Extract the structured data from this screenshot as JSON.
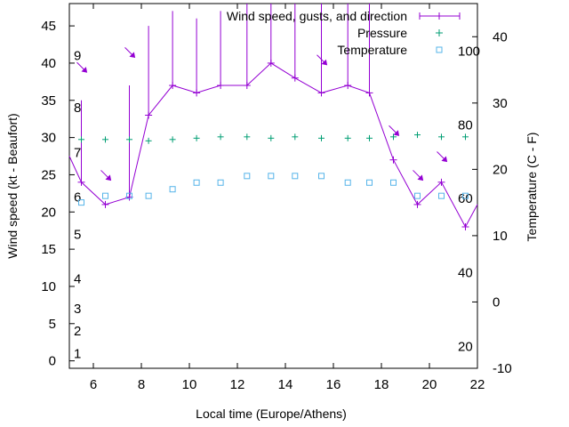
{
  "chart_data": {
    "type": "line",
    "title": "",
    "xlabel": "Local time (Europe/Athens)",
    "ylabel": "Wind speed (kt - Beaufort)",
    "y2label": "Temperature (C - F)",
    "xlim": [
      5,
      22
    ],
    "ylim": [
      -1,
      48
    ],
    "y2lim": [
      -10,
      45
    ],
    "x_ticks": [
      6,
      8,
      10,
      12,
      14,
      16,
      18,
      20,
      22
    ],
    "y_ticks": [
      0,
      5,
      10,
      15,
      20,
      25,
      30,
      35,
      40,
      45
    ],
    "y2_ticks": [
      -10,
      0,
      10,
      20,
      30,
      40
    ],
    "beaufort_labels": [
      {
        "text": "1",
        "y": 1
      },
      {
        "text": "2",
        "y": 4
      },
      {
        "text": "3",
        "y": 7
      },
      {
        "text": "4",
        "y": 11
      },
      {
        "text": "5",
        "y": 17
      },
      {
        "text": "6",
        "y": 22
      },
      {
        "text": "7",
        "y": 28
      },
      {
        "text": "8",
        "y": 34
      },
      {
        "text": "9",
        "y": 41
      }
    ],
    "fahrenheit_labels": [
      {
        "text": "20",
        "y2": -6.7
      },
      {
        "text": "40",
        "y2": 4.4
      },
      {
        "text": "60",
        "y2": 15.6
      },
      {
        "text": "80",
        "y2": 26.7
      },
      {
        "text": "100",
        "y2": 37.8
      }
    ],
    "legend_position": "top-right",
    "colors": {
      "wind": "#9400d3",
      "pressure": "#009e73",
      "temperature": "#56b4e9"
    },
    "series": [
      {
        "name": "Wind speed, gusts, and direction",
        "x": [
          5,
          5.5,
          6.5,
          7.5,
          8.3,
          9.3,
          10.3,
          11.3,
          12.4,
          13.4,
          14.4,
          15.5,
          16.6,
          17.5,
          18.5,
          19.5,
          20.5,
          21.5,
          22
        ],
        "y": [
          27.5,
          24,
          21,
          22,
          33,
          37,
          36,
          37,
          37,
          40,
          38,
          36,
          37,
          36,
          27,
          21,
          24,
          18,
          21
        ],
        "gusts": [
          null,
          35,
          null,
          37,
          45,
          47,
          46,
          47,
          48,
          48,
          48,
          48,
          48,
          48,
          null,
          null,
          null,
          null,
          null
        ],
        "direction_arrows": [
          {
            "x": 5.5,
            "y": 39.5,
            "dx": 1,
            "dy": -1
          },
          {
            "x": 6.5,
            "y": 25,
            "dx": 1,
            "dy": -1
          },
          {
            "x": 7.5,
            "y": 41.5,
            "dx": 1,
            "dy": -1
          },
          {
            "x": 15.5,
            "y": 40.5,
            "dx": 1,
            "dy": -1
          },
          {
            "x": 18.5,
            "y": 31,
            "dx": 1,
            "dy": -1
          },
          {
            "x": 19.5,
            "y": 25,
            "dx": 1,
            "dy": -1
          },
          {
            "x": 20.5,
            "y": 27.5,
            "dx": 1,
            "dy": -1
          }
        ]
      },
      {
        "name": "Pressure",
        "x": [
          5.5,
          6.5,
          7.5,
          8.3,
          9.3,
          10.3,
          11.3,
          12.4,
          13.4,
          14.4,
          15.5,
          16.6,
          17.5,
          18.5,
          19.5,
          20.5,
          21.5
        ],
        "y2": [
          24.5,
          24.5,
          24.5,
          24.3,
          24.5,
          24.7,
          24.9,
          24.9,
          24.7,
          24.9,
          24.7,
          24.7,
          24.7,
          24.9,
          25.2,
          24.9,
          24.9
        ]
      },
      {
        "name": "Temperature",
        "x": [
          5.5,
          6.5,
          7.5,
          8.3,
          9.3,
          10.3,
          11.3,
          12.4,
          13.4,
          14.4,
          15.5,
          16.6,
          17.5,
          18.5,
          19.5,
          20.5,
          21.5
        ],
        "y2": [
          15,
          16,
          16,
          16,
          17,
          18,
          18,
          19,
          19,
          19,
          19,
          18,
          18,
          18,
          16,
          16,
          16
        ]
      }
    ]
  }
}
